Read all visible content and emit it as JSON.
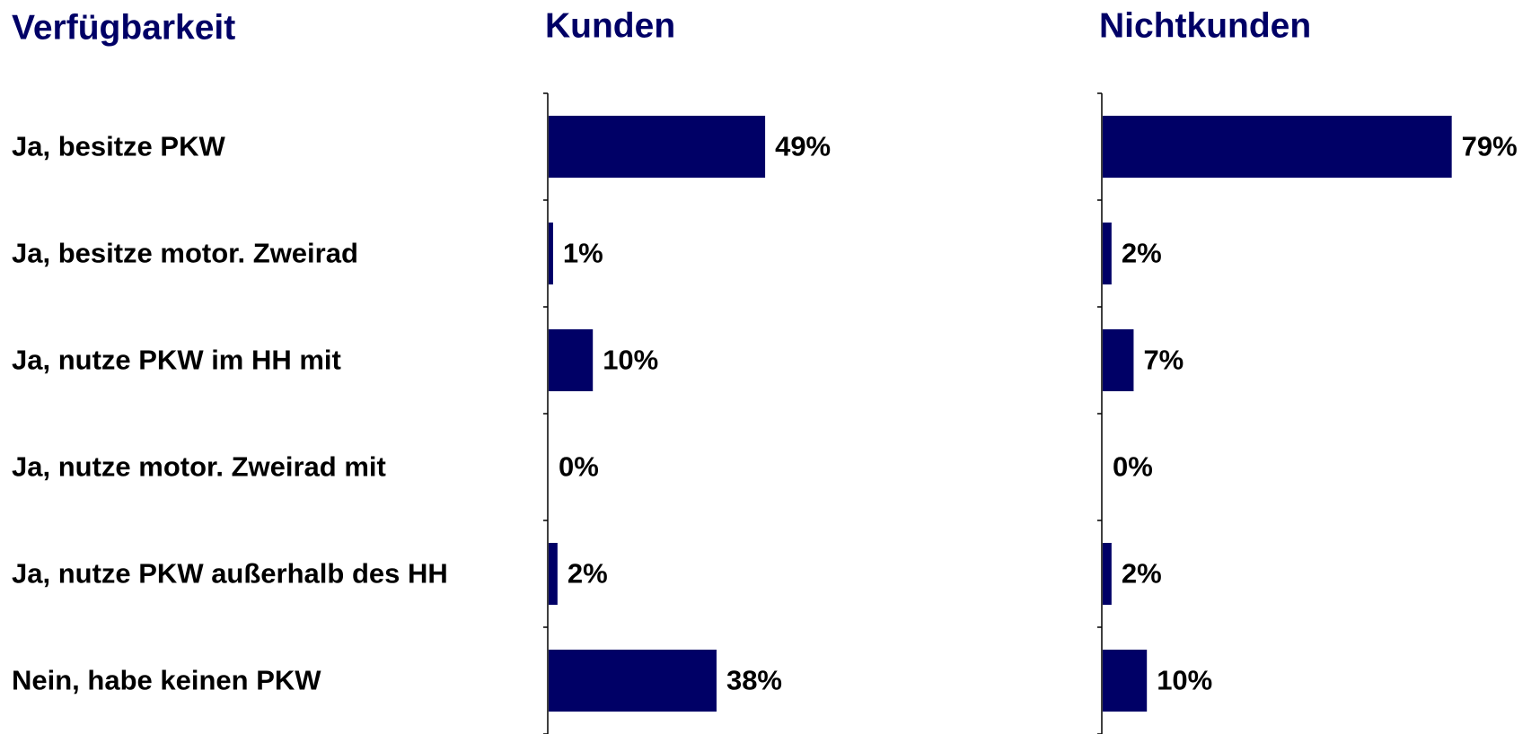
{
  "category_header": "Verfügbarkeit",
  "categories": [
    "Ja, besitze PKW",
    "Ja, besitze motor. Zweirad",
    "Ja, nutze PKW im HH mit",
    "Ja, nutze motor. Zweirad mit",
    "Ja, nutze PKW außerhalb des HH",
    "Nein, habe keinen PKW"
  ],
  "chart_data": [
    {
      "type": "bar",
      "orientation": "horizontal",
      "title": "Kunden",
      "values": [
        49,
        1,
        10,
        0,
        2,
        38
      ],
      "value_labels": [
        "49%",
        "1%",
        "10%",
        "0%",
        "2%",
        "38%"
      ],
      "color": "#000066",
      "xlim": [
        0,
        100
      ]
    },
    {
      "type": "bar",
      "orientation": "horizontal",
      "title": "Nichtkunden",
      "values": [
        79,
        2,
        7,
        0,
        2,
        10
      ],
      "value_labels": [
        "79%",
        "2%",
        "7%",
        "0%",
        "2%",
        "10%"
      ],
      "color": "#000066",
      "xlim": [
        0,
        100
      ]
    }
  ]
}
